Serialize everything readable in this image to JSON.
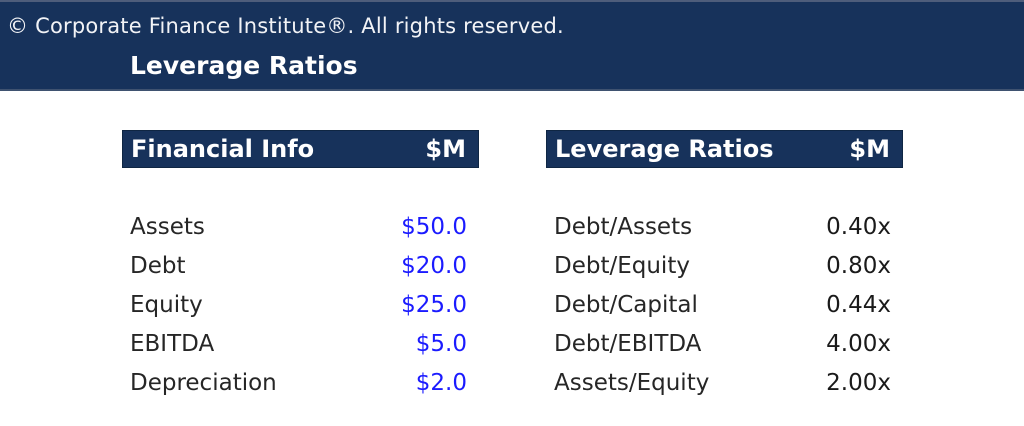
{
  "top_bar": {
    "copyright": "© Corporate Finance Institute®. All rights reserved.",
    "title": "Leverage Ratios"
  },
  "tables": {
    "financial_info": {
      "header": {
        "title": "Financial Info",
        "unit": "$M"
      },
      "rows": [
        {
          "label": "Assets",
          "value": "$50.0"
        },
        {
          "label": "Debt",
          "value": "$20.0"
        },
        {
          "label": "Equity",
          "value": "$25.0"
        },
        {
          "label": "EBITDA",
          "value": "$5.0"
        },
        {
          "label": "Depreciation",
          "value": "$2.0"
        }
      ]
    },
    "leverage_ratios": {
      "header": {
        "title": "Leverage Ratios",
        "unit": "$M"
      },
      "rows": [
        {
          "label": "Debt/Assets",
          "value": "0.40x"
        },
        {
          "label": "Debt/Equity",
          "value": "0.80x"
        },
        {
          "label": "Debt/Capital",
          "value": "0.44x"
        },
        {
          "label": "Debt/EBITDA",
          "value": "4.00x"
        },
        {
          "label": "Assets/Equity",
          "value": "2.00x"
        }
      ]
    }
  },
  "colors": {
    "navy": "#17325B",
    "input_blue": "#1B1BFF",
    "label_ink": "#262626",
    "value_ink": "#1A1A1A",
    "page_background": "#FFFFFF"
  }
}
